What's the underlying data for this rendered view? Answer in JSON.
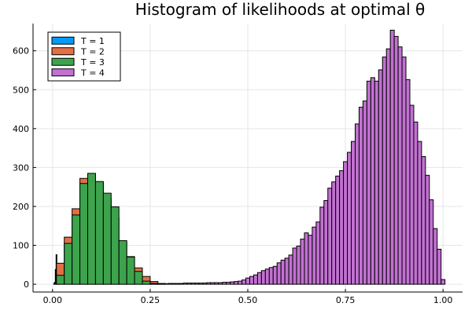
{
  "chart_data": {
    "type": "bar",
    "title": "Histogram of likelihoods at optimal θ",
    "xlabel": "",
    "ylabel": "",
    "xlim": [
      -0.05,
      1.05
    ],
    "ylim": [
      -20,
      670
    ],
    "grid": true,
    "legend_position": "top-left",
    "x_ticks": [
      0.0,
      0.25,
      0.5,
      0.75,
      1.0
    ],
    "x_tick_labels": [
      "0.00",
      "0.25",
      "0.50",
      "0.75",
      "1.00"
    ],
    "y_ticks": [
      0,
      100,
      200,
      300,
      400,
      500,
      600
    ],
    "y_tick_labels": [
      "0",
      "100",
      "200",
      "300",
      "400",
      "500",
      "600"
    ],
    "colors": {
      "T = 1": "#009af9",
      "T = 2": "#e26f46",
      "T = 3": "#3da44d",
      "T = 4": "#c271d2"
    },
    "series": [
      {
        "name": "T = 1",
        "bin_width": 0.002,
        "bins": [
          [
            0.004,
            2
          ],
          [
            0.006,
            5
          ],
          [
            0.008,
            38
          ],
          [
            0.01,
            76
          ],
          [
            0.012,
            40
          ],
          [
            0.014,
            15
          ],
          [
            0.016,
            5
          ]
        ]
      },
      {
        "name": "T = 2",
        "bin_width": 0.02,
        "bins": [
          [
            0.02,
            54
          ],
          [
            0.04,
            121
          ],
          [
            0.06,
            194
          ],
          [
            0.08,
            272
          ],
          [
            0.1,
            282
          ],
          [
            0.12,
            262
          ],
          [
            0.14,
            220
          ],
          [
            0.16,
            171
          ],
          [
            0.18,
            109
          ],
          [
            0.2,
            71
          ],
          [
            0.22,
            42
          ],
          [
            0.24,
            20
          ],
          [
            0.26,
            7
          ],
          [
            0.28,
            2
          ]
        ]
      },
      {
        "name": "T = 3",
        "bin_width": 0.02,
        "bins": [
          [
            0.02,
            23
          ],
          [
            0.04,
            105
          ],
          [
            0.06,
            178
          ],
          [
            0.08,
            259
          ],
          [
            0.1,
            285
          ],
          [
            0.12,
            264
          ],
          [
            0.14,
            234
          ],
          [
            0.16,
            199
          ],
          [
            0.18,
            112
          ],
          [
            0.2,
            70
          ],
          [
            0.22,
            33
          ],
          [
            0.24,
            8
          ],
          [
            0.26,
            2
          ]
        ]
      },
      {
        "name": "T = 4",
        "bin_width": 0.01,
        "bins": [
          [
            0.27,
            1
          ],
          [
            0.28,
            1
          ],
          [
            0.29,
            1
          ],
          [
            0.3,
            2
          ],
          [
            0.31,
            2
          ],
          [
            0.32,
            2
          ],
          [
            0.33,
            2
          ],
          [
            0.34,
            3
          ],
          [
            0.35,
            3
          ],
          [
            0.36,
            3
          ],
          [
            0.37,
            3
          ],
          [
            0.38,
            3
          ],
          [
            0.39,
            3
          ],
          [
            0.4,
            4
          ],
          [
            0.41,
            4
          ],
          [
            0.42,
            4
          ],
          [
            0.43,
            4
          ],
          [
            0.44,
            5
          ],
          [
            0.45,
            5
          ],
          [
            0.46,
            6
          ],
          [
            0.47,
            7
          ],
          [
            0.48,
            8
          ],
          [
            0.49,
            11
          ],
          [
            0.5,
            16
          ],
          [
            0.51,
            20
          ],
          [
            0.52,
            24
          ],
          [
            0.53,
            30
          ],
          [
            0.54,
            35
          ],
          [
            0.55,
            39
          ],
          [
            0.56,
            43
          ],
          [
            0.57,
            46
          ],
          [
            0.58,
            55
          ],
          [
            0.59,
            62
          ],
          [
            0.6,
            67
          ],
          [
            0.61,
            75
          ],
          [
            0.62,
            93
          ],
          [
            0.63,
            98
          ],
          [
            0.64,
            116
          ],
          [
            0.65,
            132
          ],
          [
            0.66,
            126
          ],
          [
            0.67,
            147
          ],
          [
            0.68,
            160
          ],
          [
            0.69,
            198
          ],
          [
            0.7,
            215
          ],
          [
            0.71,
            247
          ],
          [
            0.72,
            263
          ],
          [
            0.73,
            278
          ],
          [
            0.74,
            292
          ],
          [
            0.75,
            315
          ],
          [
            0.76,
            339
          ],
          [
            0.77,
            367
          ],
          [
            0.78,
            412
          ],
          [
            0.79,
            455
          ],
          [
            0.8,
            471
          ],
          [
            0.81,
            522
          ],
          [
            0.82,
            531
          ],
          [
            0.83,
            522
          ],
          [
            0.84,
            551
          ],
          [
            0.85,
            584
          ],
          [
            0.86,
            605
          ],
          [
            0.87,
            653
          ],
          [
            0.88,
            637
          ],
          [
            0.89,
            610
          ],
          [
            0.9,
            584
          ],
          [
            0.91,
            526
          ],
          [
            0.92,
            460
          ],
          [
            0.93,
            417
          ],
          [
            0.94,
            367
          ],
          [
            0.95,
            328
          ],
          [
            0.96,
            280
          ],
          [
            0.97,
            217
          ],
          [
            0.98,
            143
          ],
          [
            0.99,
            90
          ],
          [
            1.0,
            12
          ]
        ]
      }
    ]
  }
}
